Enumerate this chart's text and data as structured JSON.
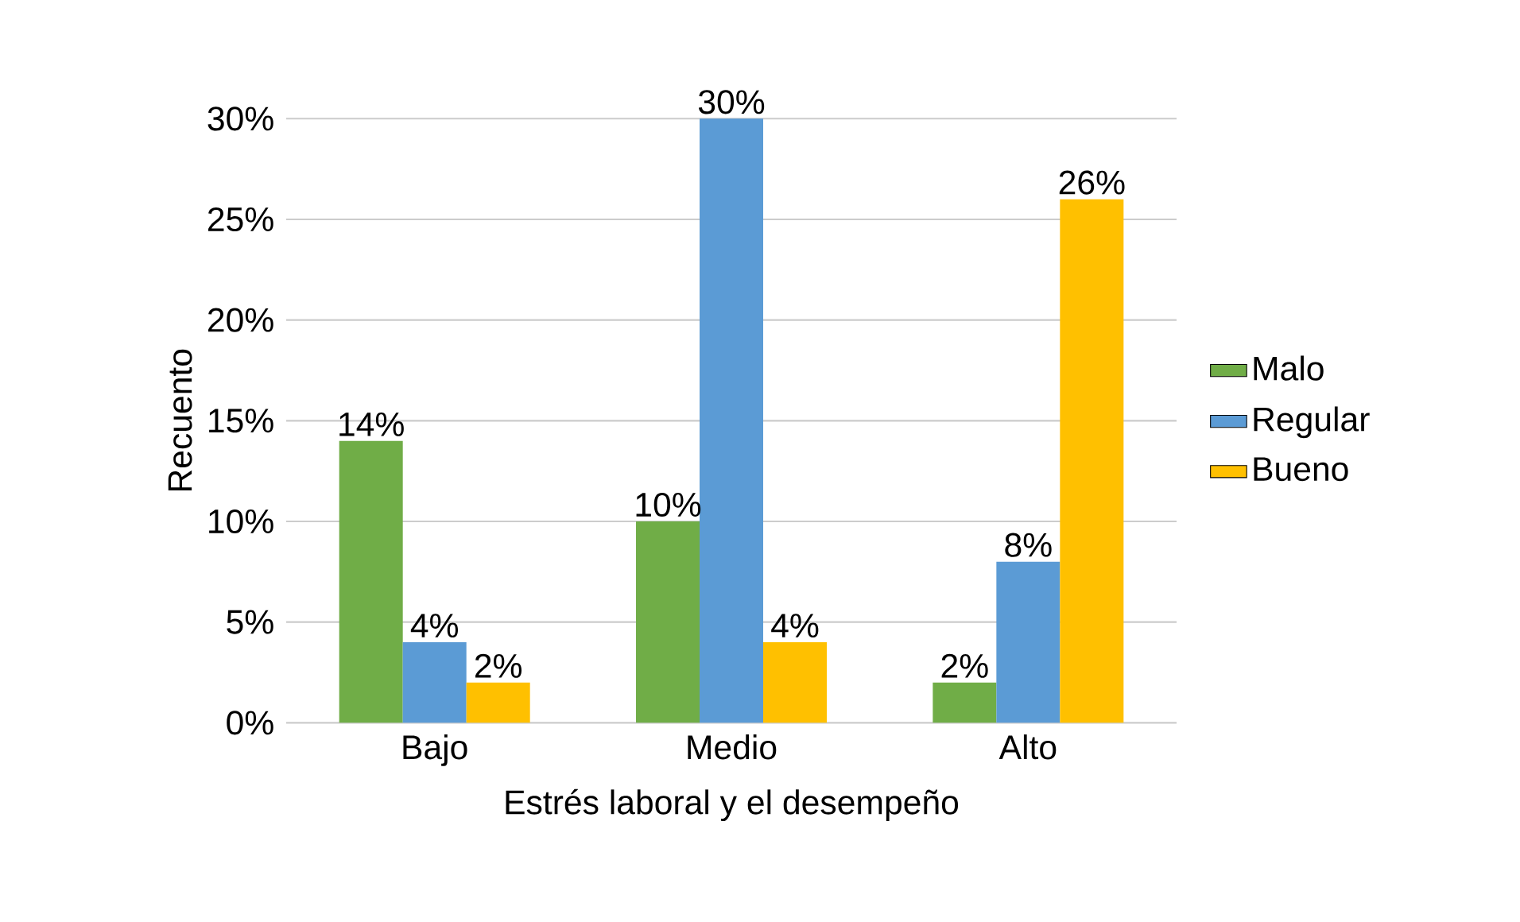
{
  "chart_data": {
    "type": "bar",
    "xlabel": "Estrés laboral y el desempeño",
    "ylabel": "Recuento",
    "categories": [
      "Bajo",
      "Medio",
      "Alto"
    ],
    "series": [
      {
        "name": "Malo",
        "color": "#70ad47",
        "values": [
          14,
          10,
          2
        ],
        "value_labels": [
          "14%",
          "10%",
          "2%"
        ]
      },
      {
        "name": "Regular",
        "color": "#5b9bd5",
        "values": [
          4,
          30,
          8
        ],
        "value_labels": [
          "4%",
          "30%",
          "8%"
        ]
      },
      {
        "name": "Bueno",
        "color": "#ffc000",
        "values": [
          2,
          4,
          26
        ],
        "value_labels": [
          "2%",
          "4%",
          "26%"
        ]
      }
    ],
    "ylim": [
      0,
      30
    ],
    "yticks": [
      {
        "value": 0,
        "label": "0%"
      },
      {
        "value": 5,
        "label": "5%"
      },
      {
        "value": 10,
        "label": "10%"
      },
      {
        "value": 15,
        "label": "15%"
      },
      {
        "value": 20,
        "label": "20%"
      },
      {
        "value": 25,
        "label": "25%"
      },
      {
        "value": 30,
        "label": "30%"
      }
    ],
    "grid": "y",
    "legend": "right"
  }
}
